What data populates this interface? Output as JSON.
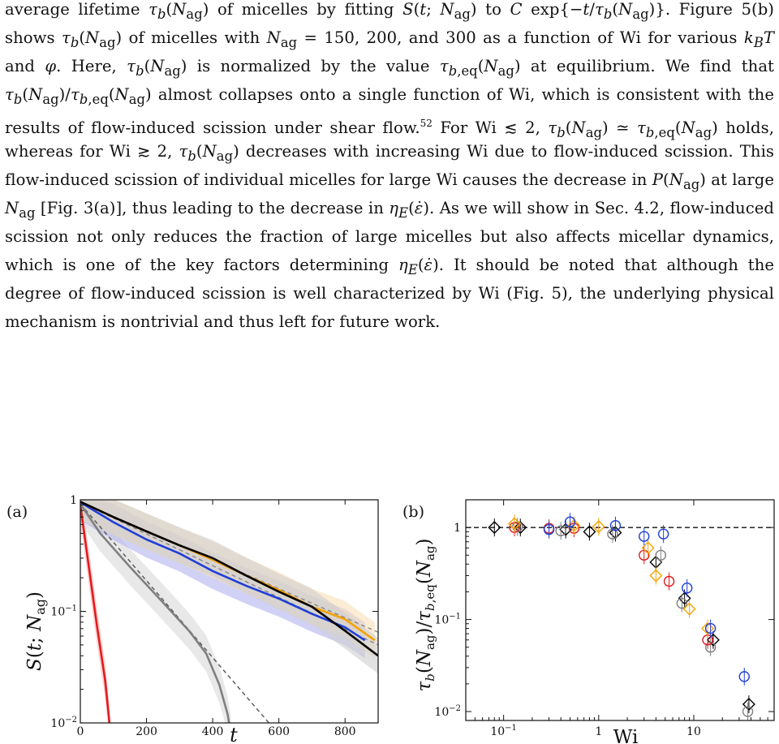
{
  "paragraph": {
    "lines": [
      "average lifetime τ_b(N_ag) of micelles by fitting S(t; N_ag) to C exp{−t/τ_b(N_ag)}. Figure 5(b)",
      "shows τ_b(N_ag) of micelles with N_ag = 150, 200, and 300 as a function of Wi for various k_BT",
      "and φ. Here, τ_b(N_ag) is normalized by the value τ_b,eq(N_ag) at equilibrium. We find that",
      "τ_b(N_ag)/τ_b,eq(N_ag) almost collapses onto a single function of Wi, which is consistent with the",
      "results of flow-induced scission under shear flow.",
      "52",
      " For Wi ≲ 2, τ_b(N_ag) ≃ τ_b,eq(N_ag) holds,",
      "whereas for Wi ≳ 2, τ_b(N_ag) decreases with increasing Wi due to flow-induced scission. This",
      "flow-induced scission of individual micelles for large Wi causes the decrease in P(N_ag) at large",
      "N_ag [Fig. 3(a)], thus leading to the decrease in η_E(ε̇). As we will show in Sec. 4.2, flow-induced",
      "scission not only reduces the fraction of large micelles but also affects micellar dynamics,",
      "which is one of the key factors determining η_E(ε̇). It should be noted that although the",
      "degree of flow-induced scission is well characterized by Wi (Fig. 5), the underlying physical",
      "mechanism is nontrivial and thus left for future work."
    ]
  },
  "figure_a": {
    "panel_label": "(a)",
    "chart_data": {
      "type": "line",
      "xlabel": "t",
      "ylabel": "S(t; N_ag)",
      "xlim": [
        0,
        900
      ],
      "ylim_log": [
        0.01,
        1
      ],
      "x_ticks": [
        "0",
        "200",
        "400",
        "600",
        "800"
      ],
      "y_ticks": [
        "1",
        "10^−1",
        "10^−2"
      ],
      "y_scale": "log",
      "grid": false,
      "series": [
        {
          "color": "#e41a1c",
          "band": "#f7b6b6",
          "points": [
            [
              0,
              0.9
            ],
            [
              25,
              0.26
            ],
            [
              50,
              0.075
            ],
            [
              75,
              0.024
            ],
            [
              88,
              0.01
            ]
          ]
        },
        {
          "color": "#7f7f7f",
          "band": "#d9d9d9",
          "points": [
            [
              0,
              0.92
            ],
            [
              60,
              0.5
            ],
            [
              150,
              0.25
            ],
            [
              250,
              0.12
            ],
            [
              330,
              0.066
            ],
            [
              380,
              0.042
            ],
            [
              420,
              0.022
            ],
            [
              445,
              0.012
            ],
            [
              455,
              0.008
            ]
          ]
        },
        {
          "color": "#1f3fd8",
          "band": "#b3b3f0",
          "points": [
            [
              0,
              0.95
            ],
            [
              100,
              0.63
            ],
            [
              200,
              0.44
            ],
            [
              300,
              0.33
            ],
            [
              400,
              0.23
            ],
            [
              500,
              0.17
            ],
            [
              600,
              0.13
            ],
            [
              700,
              0.095
            ],
            [
              800,
              0.072
            ],
            [
              860,
              0.055
            ]
          ]
        },
        {
          "color": "#f5a200",
          "band": "#f8dfb8",
          "points": [
            [
              0,
              0.96
            ],
            [
              100,
              0.7
            ],
            [
              200,
              0.52
            ],
            [
              300,
              0.39
            ],
            [
              400,
              0.29
            ],
            [
              500,
              0.21
            ],
            [
              600,
              0.155
            ],
            [
              700,
              0.11
            ],
            [
              800,
              0.085
            ],
            [
              890,
              0.055
            ]
          ]
        },
        {
          "color": "#000000",
          "band": "#cfcfcf",
          "points": [
            [
              0,
              0.96
            ],
            [
              100,
              0.7
            ],
            [
              200,
              0.52
            ],
            [
              300,
              0.39
            ],
            [
              400,
              0.3
            ],
            [
              500,
              0.21
            ],
            [
              600,
              0.15
            ],
            [
              700,
              0.11
            ],
            [
              800,
              0.067
            ],
            [
              900,
              0.04
            ]
          ]
        }
      ],
      "fits": [
        {
          "color": "#555555",
          "points": [
            [
              0,
              0.92
            ],
            [
              570,
              0.01
            ]
          ]
        },
        {
          "color": "#888888",
          "points": [
            [
              0,
              0.95
            ],
            [
              900,
              0.05
            ]
          ]
        },
        {
          "color": "#888888",
          "points": [
            [
              0,
              0.96
            ],
            [
              900,
              0.065
            ]
          ]
        }
      ]
    }
  },
  "figure_b": {
    "panel_label": "(b)",
    "chart_data": {
      "type": "scatter",
      "xlabel": "Wi",
      "ylabel": "τ_b(N_ag)/τ_b,eq(N_ag)",
      "x_scale": "log",
      "y_scale": "log",
      "xlim": [
        0.04,
        70
      ],
      "ylim": [
        0.008,
        2
      ],
      "x_ticks": [
        "10^−1",
        "1",
        "10"
      ],
      "y_ticks": [
        "1",
        "10^−1",
        "10^−2"
      ],
      "reference_line": {
        "y": 1,
        "style": "dashed"
      },
      "series": [
        {
          "color": "#000000",
          "marker": "diamond",
          "points": [
            [
              0.08,
              1.0
            ],
            [
              0.15,
              1.0
            ],
            [
              0.45,
              0.95
            ],
            [
              0.8,
              0.9
            ],
            [
              1.5,
              0.88
            ],
            [
              4,
              0.42
            ],
            [
              8,
              0.17
            ],
            [
              16,
              0.06
            ],
            [
              38,
              0.012
            ]
          ]
        },
        {
          "color": "#7f7f7f",
          "marker": "circle",
          "points": [
            [
              0.14,
              1.02
            ],
            [
              0.4,
              0.92
            ],
            [
              1.4,
              0.85
            ],
            [
              4.5,
              0.5
            ],
            [
              7.5,
              0.15
            ],
            [
              15,
              0.05
            ],
            [
              37,
              0.01
            ]
          ]
        },
        {
          "color": "#e41a1c",
          "marker": "circle",
          "points": [
            [
              0.13,
              1.0
            ],
            [
              0.3,
              0.98
            ],
            [
              0.55,
              0.98
            ],
            [
              3,
              0.5
            ],
            [
              5.5,
              0.26
            ],
            [
              14,
              0.06
            ]
          ]
        },
        {
          "color": "#f5a200",
          "marker": "diamond",
          "points": [
            [
              0.13,
              1.1
            ],
            [
              0.55,
              1.05
            ],
            [
              1,
              1.02
            ],
            [
              3.3,
              0.6
            ],
            [
              4,
              0.3
            ],
            [
              9,
              0.13
            ],
            [
              14,
              0.08
            ]
          ]
        },
        {
          "color": "#1f3fd8",
          "marker": "circle",
          "points": [
            [
              0.3,
              0.95
            ],
            [
              0.5,
              1.15
            ],
            [
              1.5,
              1.05
            ],
            [
              3,
              0.8
            ],
            [
              4.8,
              0.85
            ],
            [
              8.5,
              0.22
            ],
            [
              15,
              0.08
            ],
            [
              34,
              0.024
            ]
          ]
        }
      ]
    }
  }
}
